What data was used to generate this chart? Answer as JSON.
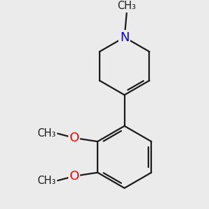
{
  "background_color": "#ebebeb",
  "bond_color": "#1a1a1a",
  "nitrogen_color": "#0000ff",
  "oxygen_color": "#ff0000",
  "bond_width": 1.6,
  "figsize": [
    3.0,
    3.0
  ],
  "dpi": 100,
  "xlim": [
    -1.8,
    2.0
  ],
  "ylim": [
    -2.6,
    1.8
  ]
}
